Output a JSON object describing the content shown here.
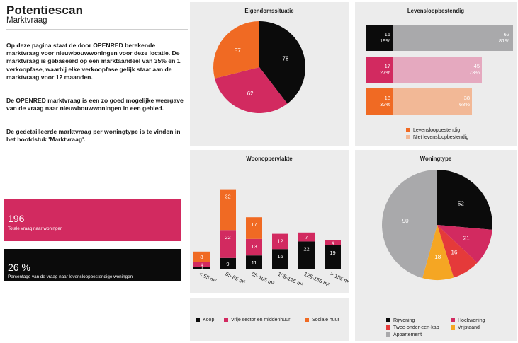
{
  "header": {
    "title": "Potentiescan",
    "subtitle": "Marktvraag"
  },
  "paragraphs": [
    "Op deze pagina staat de door OPENRED berekende marktvraag voor nieuwbouwwoningen voor deze locatie. De marktvraag is gebaseerd op een marktaandeel van 35% en 1 verkoopfase, waarbij elke verkoopfase gelijk staat aan de marktvraag voor 12 maanden.",
    "De OPENRED marktvraag is een zo goed mogelijke weergave van de vraag naar nieuwbouwwoningen in een gebied.",
    "De gedetailleerde marktvraag per woningtype is te vinden in het hoofdstuk 'Marktvraag'."
  ],
  "kpis": {
    "total": {
      "value": "196",
      "label": "Totale vraag naar woningen"
    },
    "pct": {
      "value": "26 %",
      "label": "Percentage van de vraag naar levensloopbestendige woningen"
    }
  },
  "colors": {
    "black": "#0b0b0b",
    "crimson": "#d22a60",
    "orange": "#f06a23",
    "amber": "#f5a623",
    "red": "#e53a3a",
    "grey": "#a9a9ab",
    "pink_light": "#e5a9bf",
    "orange_light": "#f2b896"
  },
  "chart_data": [
    {
      "type": "pie",
      "title": "Eigendomssituatie",
      "labels": [
        "Koop",
        "Vrije sector en middenhuur",
        "Sociale huur"
      ],
      "values": [
        78,
        62,
        57
      ]
    },
    {
      "type": "bar",
      "stacked": "horizontal-percent",
      "title": "Levensloopbestendig",
      "categories": [
        "Koop",
        "Vrije sector en middenhuur",
        "Sociale huur"
      ],
      "series": [
        {
          "name": "Levensloopbestendig",
          "values": [
            15,
            17,
            18
          ],
          "percent": [
            "19%",
            "27%",
            "32%"
          ]
        },
        {
          "name": "Niet levensloopbestendig",
          "values": [
            62,
            45,
            38
          ],
          "percent": [
            "81%",
            "73%",
            "68%"
          ]
        }
      ]
    },
    {
      "type": "bar",
      "stacked": "vertical",
      "title": "Woonoppervlakte",
      "categories": [
        "< 55 m²",
        "55-85 m²",
        "85-105 m²",
        "105-125 m²",
        "125-155 m²",
        "> 155 m²"
      ],
      "series": [
        {
          "name": "Koop",
          "values": [
            2,
            9,
            11,
            16,
            22,
            19
          ]
        },
        {
          "name": "Vrije sector en middenhuur",
          "values": [
            4,
            22,
            13,
            12,
            7,
            4
          ]
        },
        {
          "name": "Sociale huur",
          "values": [
            8,
            32,
            17,
            0,
            0,
            0
          ]
        }
      ],
      "legend": [
        "Koop",
        "Vrije sector en middenhuur",
        "Sociale huur"
      ]
    },
    {
      "type": "pie",
      "title": "Woningtype",
      "labels": [
        "Rijwoning",
        "Hoekwoning",
        "Twee-onder-een-kap",
        "Vrijstaand",
        "Appartement"
      ],
      "values": [
        52,
        21,
        16,
        18,
        90
      ]
    }
  ]
}
